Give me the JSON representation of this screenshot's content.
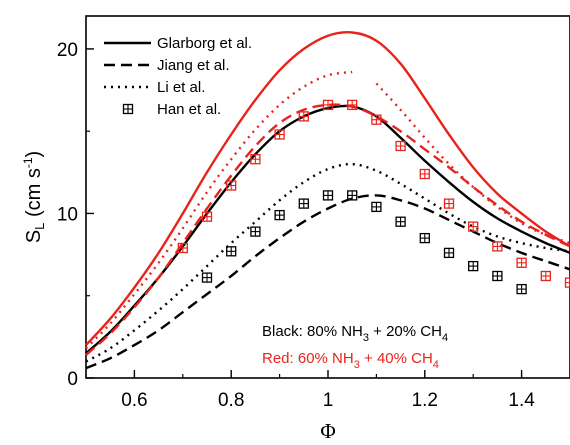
{
  "colors": {
    "black_mixture": "#000000",
    "red_mixture": "#e8231c"
  },
  "chart_data": {
    "type": "line",
    "xlabel": "Φ",
    "ylabel": {
      "main": "S",
      "sub": "L",
      "unit_open": " (cm s",
      "unit_exp": "-1",
      "unit_close": ")"
    },
    "xlim": [
      0.5,
      1.5
    ],
    "ylim": [
      0,
      22
    ],
    "x_ticks": [
      "0.6",
      "0.8",
      "1",
      "1.2",
      "1.4"
    ],
    "x_tick_values": [
      0.6,
      0.8,
      1.0,
      1.2,
      1.4
    ],
    "y_ticks": [
      "0",
      "10",
      "20"
    ],
    "y_tick_values": [
      0,
      10,
      20
    ],
    "legend": [
      {
        "label": "Glarborg et al.",
        "style": "solid"
      },
      {
        "label": "Jiang et al.",
        "style": "dashed"
      },
      {
        "label": "Li et al.",
        "style": "dotted"
      },
      {
        "label": "Han et al.",
        "style": "marker"
      }
    ],
    "annotations": {
      "black": {
        "prefix": "Black: 80% NH",
        "sub1": "3",
        "middle": " + 20% CH",
        "sub2": "4"
      },
      "red": {
        "prefix": "Red: 60% NH",
        "sub1": "3",
        "middle": " + 40% CH",
        "sub2": "4"
      }
    },
    "series": [
      {
        "model": "Glarborg et al.",
        "mixture": "black",
        "style": "solid",
        "x": [
          0.5,
          0.55,
          0.6,
          0.65,
          0.7,
          0.75,
          0.8,
          0.85,
          0.9,
          0.95,
          1.0,
          1.05,
          1.1,
          1.15,
          1.2,
          1.25,
          1.3,
          1.35,
          1.4,
          1.45,
          1.5
        ],
        "y": [
          1.5,
          2.8,
          4.4,
          6.1,
          8.0,
          10.0,
          11.9,
          13.6,
          15.0,
          15.9,
          16.4,
          16.5,
          15.9,
          14.6,
          13.2,
          11.9,
          10.7,
          9.7,
          8.9,
          8.2,
          7.6
        ]
      },
      {
        "model": "Jiang et al.",
        "mixture": "black",
        "style": "dashed",
        "x": [
          0.5,
          0.55,
          0.6,
          0.65,
          0.7,
          0.75,
          0.8,
          0.85,
          0.9,
          0.95,
          1.0,
          1.05,
          1.1,
          1.15,
          1.2,
          1.25,
          1.3,
          1.35,
          1.4,
          1.45,
          1.5
        ],
        "y": [
          0.6,
          1.2,
          2.0,
          2.9,
          4.0,
          5.1,
          6.2,
          7.4,
          8.5,
          9.5,
          10.3,
          10.9,
          11.1,
          10.8,
          10.3,
          9.6,
          8.9,
          8.2,
          7.6,
          7.1,
          6.6
        ]
      },
      {
        "model": "Li et al.",
        "mixture": "black",
        "style": "dotted",
        "x": [
          0.5,
          0.55,
          0.6,
          0.65,
          0.7,
          0.75,
          0.8,
          0.85,
          0.9,
          0.95,
          1.0,
          1.05,
          1.1,
          1.15,
          1.2,
          1.25,
          1.3,
          1.35,
          1.4,
          1.45,
          1.5
        ],
        "y": [
          1.0,
          1.8,
          2.9,
          4.1,
          5.4,
          6.8,
          8.2,
          9.5,
          10.8,
          11.9,
          12.7,
          13.0,
          12.6,
          11.8,
          10.9,
          10.0,
          9.2,
          8.6,
          8.2,
          7.9,
          7.7
        ]
      },
      {
        "model": "Glarborg et al.",
        "mixture": "red",
        "style": "solid",
        "x": [
          0.5,
          0.55,
          0.6,
          0.65,
          0.7,
          0.75,
          0.8,
          0.85,
          0.9,
          0.95,
          1.0,
          1.05,
          1.1,
          1.15,
          1.2,
          1.25,
          1.3,
          1.35,
          1.4,
          1.45,
          1.5
        ],
        "y": [
          2.0,
          3.6,
          5.5,
          7.6,
          10.0,
          12.5,
          14.8,
          16.9,
          18.7,
          20.0,
          20.8,
          21.0,
          20.5,
          19.1,
          17.0,
          14.8,
          12.8,
          11.2,
          10.0,
          8.9,
          8.0
        ]
      },
      {
        "model": "Jiang et al.",
        "mixture": "red",
        "style": "dashed",
        "x": [
          0.5,
          0.55,
          0.6,
          0.65,
          0.7,
          0.75,
          0.8,
          0.85,
          0.9,
          0.95,
          1.0,
          1.05,
          1.1,
          1.15,
          1.2,
          1.25,
          1.3,
          1.35,
          1.4,
          1.45,
          1.5
        ],
        "y": [
          1.4,
          2.7,
          4.3,
          6.1,
          8.2,
          10.3,
          12.3,
          14.1,
          15.5,
          16.3,
          16.6,
          16.5,
          15.9,
          15.0,
          13.9,
          12.8,
          11.6,
          10.5,
          9.5,
          8.7,
          8.0
        ]
      },
      {
        "model": "Li et al.",
        "mixture": "red",
        "style": "dotted",
        "gap_after_x": 1.05,
        "x": [
          0.5,
          0.55,
          0.6,
          0.65,
          0.7,
          0.75,
          0.8,
          0.85,
          0.9,
          0.95,
          1.0,
          1.05,
          1.1,
          1.15,
          1.2,
          1.25,
          1.3,
          1.35,
          1.4,
          1.45,
          1.5
        ],
        "y": [
          1.8,
          3.3,
          5.1,
          7.0,
          9.1,
          11.3,
          13.3,
          15.1,
          16.6,
          17.7,
          18.4,
          18.6,
          17.9,
          16.3,
          14.6,
          13.0,
          11.6,
          10.4,
          9.4,
          8.7,
          8.2
        ]
      },
      {
        "model": "Han et al.",
        "mixture": "black",
        "style": "marker",
        "x": [
          0.75,
          0.8,
          0.85,
          0.9,
          0.95,
          1.0,
          1.05,
          1.1,
          1.15,
          1.2,
          1.25,
          1.3,
          1.35,
          1.4
        ],
        "y": [
          6.1,
          7.7,
          8.9,
          9.9,
          10.6,
          11.1,
          11.1,
          10.4,
          9.5,
          8.5,
          7.6,
          6.8,
          6.2,
          5.4
        ]
      },
      {
        "model": "Han et al.",
        "mixture": "red",
        "style": "marker",
        "x": [
          0.7,
          0.75,
          0.8,
          0.85,
          0.9,
          0.95,
          1.0,
          1.05,
          1.1,
          1.15,
          1.2,
          1.25,
          1.3,
          1.35,
          1.4,
          1.45,
          1.5
        ],
        "y": [
          7.9,
          9.8,
          11.7,
          13.3,
          14.8,
          15.9,
          16.6,
          16.6,
          15.7,
          14.1,
          12.4,
          10.6,
          9.2,
          8.0,
          7.0,
          6.2,
          5.8
        ]
      }
    ]
  }
}
